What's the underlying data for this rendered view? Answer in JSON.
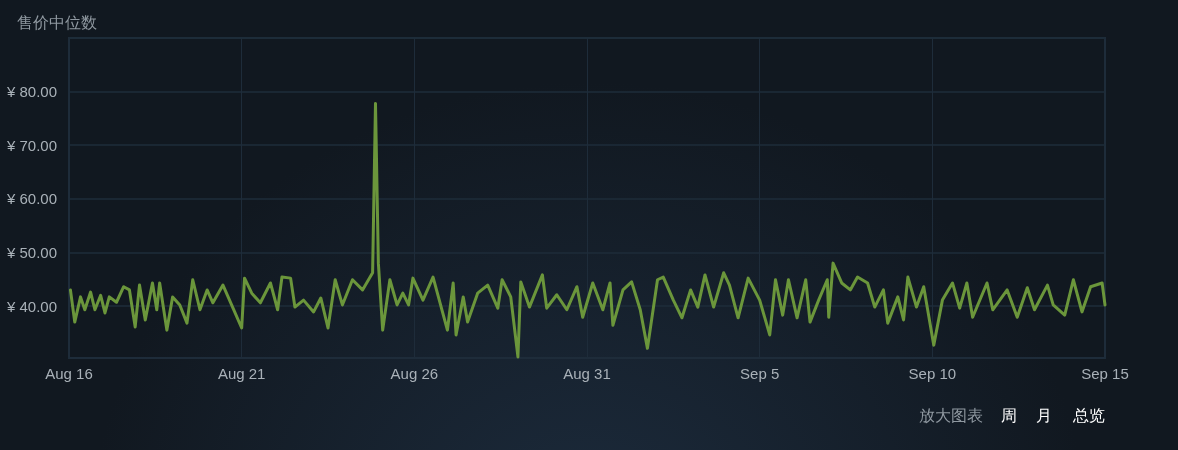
{
  "chart_data": {
    "type": "line",
    "title": "售价中位数",
    "annotations": [
      "放大图表",
      "周",
      "月",
      "总览"
    ],
    "x": [
      "--08-16T01:00",
      "--08-16T04:00",
      "--08-16T08:00",
      "--08-16T11:00",
      "--08-16T15:00",
      "--08-16T18:00",
      "--08-16T22:00",
      "--08-17T01:00",
      "--08-17T04:00",
      "--08-17T09:00",
      "--08-17T14:00",
      "--08-17T18:00",
      "--08-17T22:00",
      "--08-18T01:00",
      "--08-18T05:00",
      "--08-18T10:00",
      "--08-18T13:00",
      "--08-18T15:00",
      "--08-18T20:00",
      "--08-19T00:00",
      "--08-19T05:00",
      "--08-19T10:00",
      "--08-19T14:00",
      "--08-19T19:00",
      "--08-20T00:00",
      "--08-20T04:00",
      "--08-20T11:00",
      "--08-20T18:00",
      "--08-21T00:00",
      "--08-21T02:00",
      "--08-21T07:00",
      "--08-21T13:00",
      "--08-21T20:00",
      "--08-22T01:00",
      "--08-22T04:00",
      "--08-22T10:00",
      "--08-22T13:00",
      "--08-22T19:00",
      "--08-23T02:00",
      "--08-23T07:00",
      "--08-23T12:00",
      "--08-23T17:00",
      "--08-23T22:00",
      "--08-24T05:00",
      "--08-24T12:00",
      "--08-24T19:00",
      "--08-24T21:00",
      "--08-24T23:00",
      "--08-25T02:00",
      "--08-25T07:00",
      "--08-25T12:00",
      "--08-25T16:00",
      "--08-25T20:00",
      "--08-25T23:00",
      "--08-26T06:00",
      "--08-26T13:00",
      "--08-26T23:00",
      "--08-27T03:00",
      "--08-27T05:00",
      "--08-27T10:00",
      "--08-27T13:00",
      "--08-27T20:00",
      "--08-28T03:00",
      "--08-28T10:00",
      "--08-28T13:00",
      "--08-28T19:00",
      "--08-29T00:00",
      "--08-29T02:00",
      "--08-29T08:00",
      "--08-29T17:00",
      "--08-29T20:00",
      "--08-30T03:00",
      "--08-30T10:00",
      "--08-30T17:00",
      "--08-30T21:00",
      "--08-31T04:00",
      "--08-31T11:00",
      "--08-31T16:00",
      "--08-31T18:00",
      "--09-01T01:00",
      "--09-01T07:00",
      "--09-01T13:00",
      "--09-01T18:00",
      "--09-02T01:00",
      "--09-02T05:00",
      "--09-02T12:00",
      "--09-02T18:00",
      "--09-03T00:00",
      "--09-03T05:00",
      "--09-03T10:00",
      "--09-03T16:00",
      "--09-03T23:00",
      "--09-04T03:00",
      "--09-04T09:00",
      "--09-04T16:00",
      "--09-05T00:00",
      "--09-05T07:00",
      "--09-05T11:00",
      "--09-05T16:00",
      "--09-05T20:00",
      "--09-06T02:00",
      "--09-06T08:00",
      "--09-06T11:00",
      "--09-06T17:00",
      "--09-06T23:00",
      "--09-07T00:00",
      "--09-07T03:00",
      "--09-07T09:00",
      "--09-07T15:00",
      "--09-07T20:00",
      "--09-08T03:00",
      "--09-08T08:00",
      "--09-08T14:00",
      "--09-08T17:00",
      "--09-09T00:00",
      "--09-09T04:00",
      "--09-09T07:00",
      "--09-09T13:00",
      "--09-09T18:00",
      "--09-10T01:00",
      "--09-10T07:00",
      "--09-10T14:00",
      "--09-10T19:00",
      "--09-11T00:00",
      "--09-11T04:00",
      "--09-11T14:00",
      "--09-11T18:00",
      "--09-12T04:00",
      "--09-12T11:00",
      "--09-12T18:00",
      "--09-12T23:00",
      "--09-13T08:00",
      "--09-13T12:00",
      "--09-13T20:00",
      "--09-14T02:00",
      "--09-14T08:00",
      "--09-14T14:00",
      "--09-14T22:00",
      "--09-15T00:00"
    ],
    "series": [
      {
        "color": "#6b963b",
        "values": [
          43.0,
          37.0,
          41.7,
          39.3,
          42.6,
          39.3,
          42.0,
          38.7,
          41.7,
          40.7,
          43.6,
          43.0,
          36.1,
          43.9,
          37.4,
          44.3,
          39.3,
          44.3,
          35.5,
          41.7,
          40.2,
          36.8,
          44.9,
          39.3,
          43.0,
          40.6,
          43.9,
          39.6,
          35.9,
          45.2,
          42.4,
          40.6,
          44.3,
          39.3,
          45.4,
          45.2,
          39.8,
          41.1,
          38.9,
          41.5,
          35.9,
          44.9,
          40.2,
          44.9,
          43.0,
          46.2,
          77.8,
          48.0,
          35.5,
          44.9,
          40.2,
          42.4,
          40.2,
          45.2,
          41.1,
          45.4,
          35.5,
          44.3,
          34.6,
          41.7,
          37.0,
          42.4,
          43.9,
          39.6,
          44.9,
          41.7,
          30.5,
          44.5,
          39.8,
          45.8,
          39.6,
          42.1,
          39.3,
          43.6,
          37.9,
          44.3,
          39.3,
          44.3,
          36.4,
          43.0,
          44.5,
          39.3,
          32.1,
          44.9,
          45.4,
          41.1,
          37.8,
          43.0,
          39.8,
          45.8,
          39.8,
          46.2,
          43.9,
          37.8,
          45.2,
          41.1,
          34.6,
          44.9,
          38.3,
          44.9,
          37.8,
          44.9,
          37.0,
          41.1,
          44.9,
          37.9,
          48.0,
          44.3,
          43.0,
          45.4,
          44.3,
          39.8,
          43.0,
          36.8,
          41.7,
          37.4,
          45.4,
          39.8,
          43.6,
          32.7,
          41.1,
          44.3,
          39.6,
          44.3,
          37.9,
          44.3,
          39.3,
          43.0,
          37.9,
          43.4,
          39.3,
          43.9,
          40.2,
          38.3,
          44.9,
          38.9,
          43.6,
          44.3,
          40.2
        ]
      }
    ],
    "xlim": [
      "--08-16",
      "--09-15"
    ],
    "xticks": [
      {
        "value": "--08-16",
        "label": "Aug 16"
      },
      {
        "value": "--08-21",
        "label": "Aug 21"
      },
      {
        "value": "--08-26",
        "label": "Aug 26"
      },
      {
        "value": "--08-31",
        "label": "Aug 31"
      },
      {
        "value": "--09-05",
        "label": "Sep 5"
      },
      {
        "value": "--09-10",
        "label": "Sep 10"
      },
      {
        "value": "--09-15",
        "label": "Sep 15"
      }
    ],
    "ylim": [
      30.3,
      90
    ],
    "yticks": [
      {
        "value": 40,
        "label": "¥ 40.00"
      },
      {
        "value": 50,
        "label": "¥ 50.00"
      },
      {
        "value": 60,
        "label": "¥ 60.00"
      },
      {
        "value": 70,
        "label": "¥ 70.00"
      },
      {
        "value": 80,
        "label": "¥ 80.00"
      },
      {
        "value": 90,
        "label": null
      }
    ],
    "grid": true,
    "marker": "none",
    "line_style": "solid"
  }
}
